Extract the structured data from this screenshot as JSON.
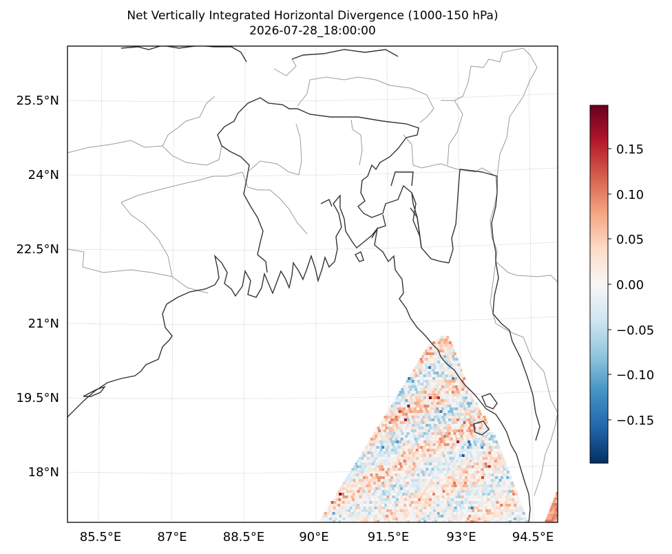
{
  "title": {
    "line1": "Net Vertically Integrated Horizontal Divergence (1000-150 hPa)",
    "line2": "2026-07-28_18:00:00"
  },
  "map": {
    "lat_labels": [
      "25.5°N",
      "24°N",
      "22.5°N",
      "21°N",
      "19.5°N",
      "18°N"
    ],
    "lon_labels": [
      "85.5°E",
      "87°E",
      "88.5°E",
      "90°E",
      "91.5°E",
      "93°E",
      "94.5°E"
    ],
    "extent": {
      "lon_min": 84.9,
      "lon_max": 95.1,
      "lat_min": 17.0,
      "lat_max": 26.5
    },
    "gridlines": true,
    "coastline_color": "#333333",
    "border_color": "#999999"
  },
  "colorbar": {
    "colormap": "RdBu_r",
    "tick_labels": [
      "0.15",
      "0.10",
      "0.05",
      "0.00",
      "−0.05",
      "−0.10",
      "−0.15"
    ],
    "range": [
      -0.2,
      0.2
    ]
  },
  "chart_data": {
    "type": "heatmap",
    "title": "Net Vertically Integrated Horizontal Divergence (1000-150 hPa)",
    "subtitle": "2026-07-28_18:00:00",
    "xlabel": "",
    "ylabel": "",
    "value_range": [
      -0.2,
      0.2
    ],
    "data_region": "Bay of Bengal south of ~20.7°N and east of ~90°E, plus a small patch near 95°E 17.5°N"
  }
}
